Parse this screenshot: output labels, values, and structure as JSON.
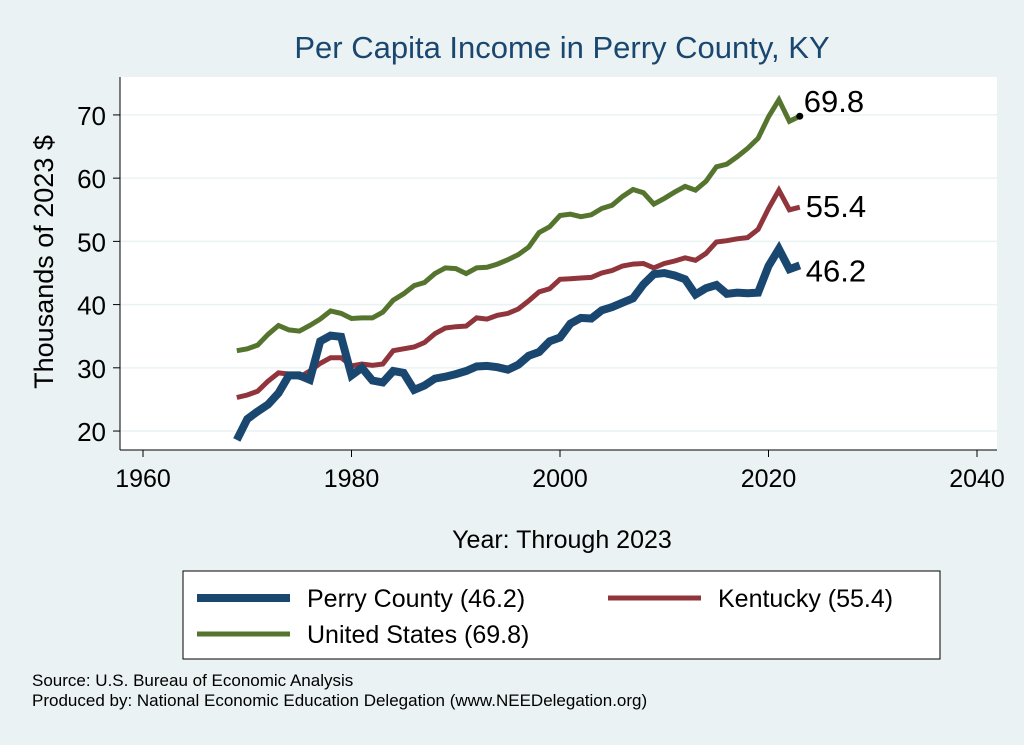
{
  "chart_data": {
    "type": "line",
    "title": "Per Capita Income in Perry County, KY",
    "xlabel": "Year: Through 2023",
    "ylabel": "Thousands of 2023 $",
    "xlim": [
      1960,
      2040
    ],
    "ylim": [
      17,
      76
    ],
    "xticks": [
      1960,
      1980,
      2000,
      2020,
      2040
    ],
    "yticks": [
      20,
      30,
      40,
      50,
      60,
      70
    ],
    "grid": true,
    "legend_position": "bottom",
    "series": [
      {
        "name": "Perry County (46.2)",
        "color": "#1a476f",
        "end_label": "46.2",
        "x": [
          1969,
          1970,
          1971,
          1972,
          1973,
          1974,
          1975,
          1976,
          1977,
          1978,
          1979,
          1980,
          1981,
          1982,
          1983,
          1984,
          1985,
          1986,
          1987,
          1988,
          1989,
          1990,
          1991,
          1992,
          1993,
          1994,
          1995,
          1996,
          1997,
          1998,
          1999,
          2000,
          2001,
          2002,
          2003,
          2004,
          2005,
          2006,
          2007,
          2008,
          2009,
          2010,
          2011,
          2012,
          2013,
          2014,
          2015,
          2016,
          2017,
          2018,
          2019,
          2020,
          2021,
          2022,
          2023
        ],
        "y": [
          18.6,
          21.9,
          23.1,
          24.2,
          26.0,
          28.8,
          28.8,
          28.1,
          34.2,
          35.1,
          34.9,
          28.8,
          30.0,
          28.0,
          27.7,
          29.5,
          29.2,
          26.5,
          27.2,
          28.3,
          28.6,
          29.0,
          29.5,
          30.2,
          30.3,
          30.1,
          29.7,
          30.5,
          31.9,
          32.5,
          34.2,
          34.8,
          37.0,
          37.9,
          37.8,
          39.1,
          39.6,
          40.3,
          41.0,
          43.2,
          44.8,
          45.0,
          44.6,
          44.0,
          41.6,
          42.6,
          43.1,
          41.7,
          41.9,
          41.8,
          41.9,
          46.1,
          48.8,
          45.6,
          46.2
        ]
      },
      {
        "name": "Kentucky (55.4)",
        "color": "#90353b",
        "end_label": "55.4",
        "x": [
          1969,
          1970,
          1971,
          1972,
          1973,
          1974,
          1975,
          1976,
          1977,
          1978,
          1979,
          1980,
          1981,
          1982,
          1983,
          1984,
          1985,
          1986,
          1987,
          1988,
          1989,
          1990,
          1991,
          1992,
          1993,
          1994,
          1995,
          1996,
          1997,
          1998,
          1999,
          2000,
          2001,
          2002,
          2003,
          2004,
          2005,
          2006,
          2007,
          2008,
          2009,
          2010,
          2011,
          2012,
          2013,
          2014,
          2015,
          2016,
          2017,
          2018,
          2019,
          2020,
          2021,
          2022,
          2023
        ],
        "y": [
          25.3,
          25.7,
          26.3,
          27.9,
          29.2,
          29.0,
          28.5,
          29.5,
          30.7,
          31.6,
          31.6,
          30.3,
          30.6,
          30.4,
          30.6,
          32.7,
          33.0,
          33.3,
          34.0,
          35.4,
          36.3,
          36.5,
          36.6,
          37.9,
          37.7,
          38.3,
          38.6,
          39.3,
          40.6,
          42.0,
          42.5,
          44.0,
          44.1,
          44.2,
          44.3,
          45.0,
          45.4,
          46.1,
          46.4,
          46.5,
          45.8,
          46.5,
          46.9,
          47.4,
          47.0,
          48.1,
          49.9,
          50.1,
          50.4,
          50.6,
          51.9,
          55.2,
          58.1,
          55.0,
          55.4
        ]
      },
      {
        "name": "United States (69.8)",
        "color": "#55752f",
        "end_label": "69.8",
        "x": [
          1969,
          1970,
          1971,
          1972,
          1973,
          1974,
          1975,
          1976,
          1977,
          1978,
          1979,
          1980,
          1981,
          1982,
          1983,
          1984,
          1985,
          1986,
          1987,
          1988,
          1989,
          1990,
          1991,
          1992,
          1993,
          1994,
          1995,
          1996,
          1997,
          1998,
          1999,
          2000,
          2001,
          2002,
          2003,
          2004,
          2005,
          2006,
          2007,
          2008,
          2009,
          2010,
          2011,
          2012,
          2013,
          2014,
          2015,
          2016,
          2017,
          2018,
          2019,
          2020,
          2021,
          2022,
          2023
        ],
        "y": [
          32.7,
          33.0,
          33.6,
          35.3,
          36.7,
          36.0,
          35.8,
          36.7,
          37.7,
          39.0,
          38.6,
          37.8,
          37.9,
          37.9,
          38.8,
          40.7,
          41.7,
          43.0,
          43.5,
          44.9,
          45.8,
          45.7,
          44.9,
          45.8,
          45.9,
          46.4,
          47.1,
          47.9,
          49.1,
          51.4,
          52.3,
          54.1,
          54.3,
          53.9,
          54.2,
          55.2,
          55.7,
          57.1,
          58.2,
          57.7,
          55.9,
          56.8,
          57.8,
          58.7,
          58.1,
          59.5,
          61.8,
          62.2,
          63.4,
          64.7,
          66.3,
          69.7,
          72.4,
          69.0,
          69.8
        ]
      }
    ]
  },
  "source_lines": {
    "source": "Source: U.S. Bureau of Economic Analysis",
    "produced": "Produced by: National Economic Education Delegation (www.NEEDelegation.org)"
  }
}
